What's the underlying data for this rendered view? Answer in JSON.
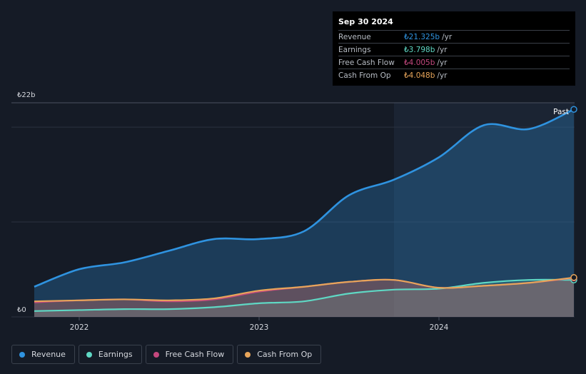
{
  "colors": {
    "revenue": "#2f93e0",
    "earnings": "#5fd8c4",
    "fcf": "#c4487e",
    "cfo": "#e7a55a",
    "background": "#151b26",
    "past_region": "#1b2433"
  },
  "tooltip": {
    "date": "Sep 30 2024",
    "rows": [
      {
        "label": "Revenue",
        "value": "₺21.325b",
        "unit": "/yr",
        "color": "#2f93e0"
      },
      {
        "label": "Earnings",
        "value": "₺3.798b",
        "unit": "/yr",
        "color": "#5fd8c4"
      },
      {
        "label": "Free Cash Flow",
        "value": "₺4.005b",
        "unit": "/yr",
        "color": "#c4487e"
      },
      {
        "label": "Cash From Op",
        "value": "₺4.048b",
        "unit": "/yr",
        "color": "#e7a55a"
      }
    ]
  },
  "legend": [
    {
      "label": "Revenue",
      "color": "#2f93e0"
    },
    {
      "label": "Earnings",
      "color": "#5fd8c4"
    },
    {
      "label": "Free Cash Flow",
      "color": "#c4487e"
    },
    {
      "label": "Cash From Op",
      "color": "#e7a55a"
    }
  ],
  "chart_data": {
    "type": "area",
    "y_top_label": "₺22b",
    "y_bottom_label": "₺0",
    "past_label": "Past",
    "ylim": [
      0,
      22
    ],
    "xlim": [
      2021.7,
      2024.75
    ],
    "x_ticks": [
      {
        "value": 2022.0,
        "label": "2022"
      },
      {
        "value": 2023.0,
        "label": "2023"
      },
      {
        "value": 2024.0,
        "label": "2024"
      }
    ],
    "past_start": 2023.75,
    "grid": true,
    "series": [
      {
        "name": "Revenue",
        "color": "#2f93e0",
        "x": [
          2021.75,
          2022.0,
          2022.25,
          2022.5,
          2022.75,
          2023.0,
          2023.25,
          2023.5,
          2023.75,
          2024.0,
          2024.25,
          2024.5,
          2024.75
        ],
        "values": [
          3.1,
          4.9,
          5.6,
          6.8,
          8.0,
          8.0,
          8.8,
          12.5,
          14.1,
          16.4,
          19.7,
          19.3,
          21.325
        ]
      },
      {
        "name": "Earnings",
        "color": "#5fd8c4",
        "x": [
          2021.75,
          2022.0,
          2022.25,
          2022.5,
          2022.75,
          2023.0,
          2023.25,
          2023.5,
          2023.75,
          2024.0,
          2024.25,
          2024.5,
          2024.75
        ],
        "values": [
          0.6,
          0.7,
          0.8,
          0.8,
          1.0,
          1.4,
          1.6,
          2.4,
          2.8,
          2.9,
          3.5,
          3.8,
          3.798
        ]
      },
      {
        "name": "Free Cash Flow",
        "color": "#c4487e",
        "x": [
          2021.75,
          2022.0,
          2022.25,
          2022.5,
          2022.75,
          2023.0,
          2023.25,
          2023.5,
          2023.75,
          2024.0,
          2024.25,
          2024.5,
          2024.75
        ],
        "values": [
          1.5,
          1.7,
          1.8,
          1.6,
          1.8,
          2.6,
          3.1,
          3.6,
          3.8,
          3.0,
          3.2,
          3.5,
          4.005
        ]
      },
      {
        "name": "Cash From Op",
        "color": "#e7a55a",
        "x": [
          2021.75,
          2022.0,
          2022.25,
          2022.5,
          2022.75,
          2023.0,
          2023.25,
          2023.5,
          2023.75,
          2024.0,
          2024.25,
          2024.5,
          2024.75
        ],
        "values": [
          1.6,
          1.7,
          1.8,
          1.7,
          1.9,
          2.7,
          3.1,
          3.6,
          3.8,
          3.0,
          3.2,
          3.5,
          4.048
        ]
      }
    ]
  }
}
